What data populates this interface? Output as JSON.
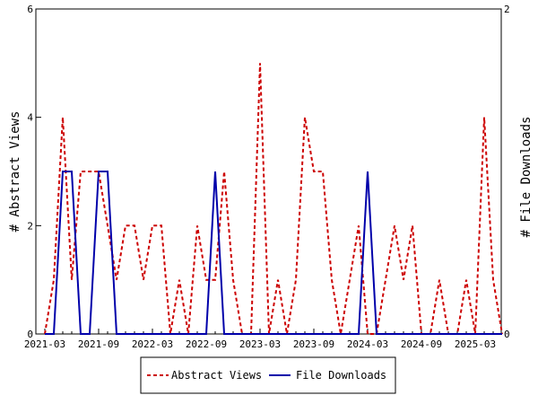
{
  "chart_data": {
    "type": "line",
    "x_labels": [
      "2021-03",
      "2021-09",
      "2022-03",
      "2022-09",
      "2023-03",
      "2023-09",
      "2024-03",
      "2024-09",
      "2025-03"
    ],
    "ylabel_left": "# Abstract Views",
    "ylabel_right": "# File Downloads",
    "ylim_left": [
      0,
      6
    ],
    "ylim_right": [
      0,
      2
    ],
    "y_ticks_left": [
      "0",
      "2",
      "4",
      "6"
    ],
    "y_ticks_right": [
      "0",
      "2"
    ],
    "legend_placement": "bottom",
    "series": [
      {
        "name": "Abstract Views",
        "axis": "left",
        "color": "#cc0000",
        "style": "dashed",
        "x": [
          "2021-03",
          "2021-04",
          "2021-05",
          "2021-06",
          "2021-07",
          "2021-08",
          "2021-09",
          "2021-10",
          "2021-11",
          "2021-12",
          "2022-01",
          "2022-02",
          "2022-03",
          "2022-04",
          "2022-05",
          "2022-06",
          "2022-07",
          "2022-08",
          "2022-09",
          "2022-10",
          "2022-11",
          "2022-12",
          "2023-01",
          "2023-02",
          "2023-03",
          "2023-04",
          "2023-05",
          "2023-06",
          "2023-07",
          "2023-08",
          "2023-09",
          "2023-10",
          "2023-11",
          "2023-12",
          "2024-01",
          "2024-02",
          "2024-03",
          "2024-04",
          "2024-05",
          "2024-06",
          "2024-07",
          "2024-08",
          "2024-09",
          "2024-10",
          "2024-11",
          "2024-12",
          "2025-01",
          "2025-02",
          "2025-03",
          "2025-04",
          "2025-05",
          "2025-06"
        ],
        "values": [
          0,
          1,
          4,
          1,
          3,
          3,
          3,
          2,
          1,
          2,
          2,
          1,
          2,
          2,
          0,
          1,
          0,
          2,
          1,
          1,
          3,
          1,
          0,
          0,
          5,
          0,
          1,
          0,
          1,
          4,
          3,
          3,
          1,
          0,
          1,
          2,
          0,
          0,
          1,
          2,
          1,
          2,
          0,
          0,
          1,
          0,
          0,
          1,
          0,
          4,
          1,
          0
        ]
      },
      {
        "name": "File Downloads",
        "axis": "right",
        "color": "#0000aa",
        "style": "solid",
        "x": [
          "2021-03",
          "2021-04",
          "2021-05",
          "2021-06",
          "2021-07",
          "2021-08",
          "2021-09",
          "2021-10",
          "2021-11",
          "2021-12",
          "2022-01",
          "2022-02",
          "2022-03",
          "2022-04",
          "2022-05",
          "2022-06",
          "2022-07",
          "2022-08",
          "2022-09",
          "2022-10",
          "2022-11",
          "2022-12",
          "2023-01",
          "2023-02",
          "2023-03",
          "2023-04",
          "2023-05",
          "2023-06",
          "2023-07",
          "2023-08",
          "2023-09",
          "2023-10",
          "2023-11",
          "2023-12",
          "2024-01",
          "2024-02",
          "2024-03",
          "2024-04",
          "2024-05",
          "2024-06",
          "2024-07",
          "2024-08",
          "2024-09",
          "2024-10",
          "2024-11",
          "2024-12",
          "2025-01",
          "2025-02",
          "2025-03",
          "2025-04",
          "2025-05",
          "2025-06"
        ],
        "values": [
          0,
          0,
          1,
          1,
          0,
          0,
          1,
          1,
          0,
          0,
          0,
          0,
          0,
          0,
          0,
          0,
          0,
          0,
          0,
          1,
          0,
          0,
          0,
          0,
          0,
          0,
          0,
          0,
          0,
          0,
          0,
          0,
          0,
          0,
          0,
          0,
          1,
          0,
          0,
          0,
          0,
          0,
          0,
          0,
          0,
          0,
          0,
          0,
          0,
          0,
          0,
          0
        ]
      }
    ]
  }
}
